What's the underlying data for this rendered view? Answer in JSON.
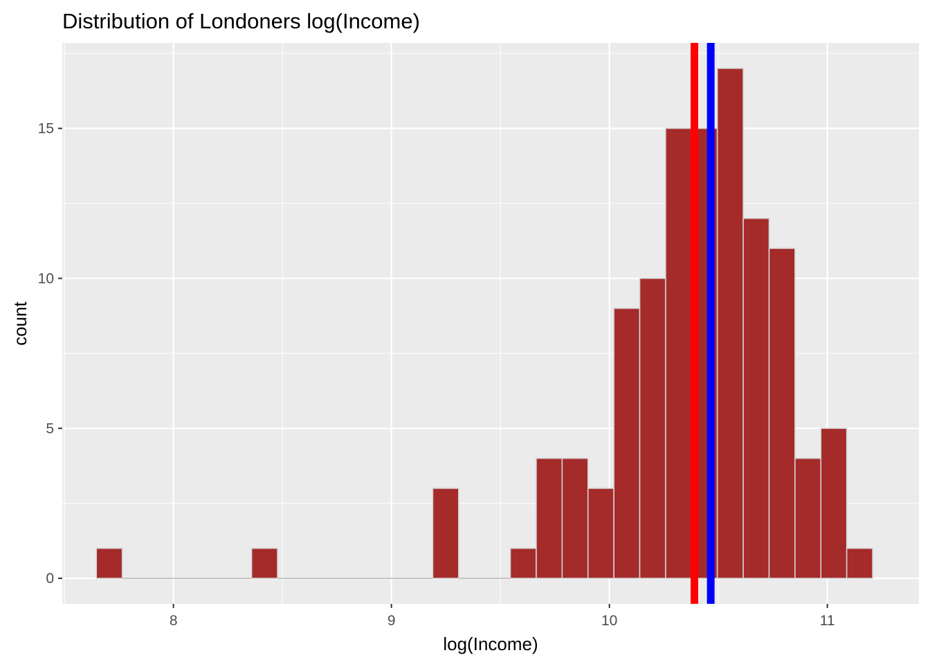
{
  "chart_data": {
    "type": "bar",
    "title": "Distribution of Londoners log(Income)",
    "xlabel": "log(Income)",
    "ylabel": "count",
    "xlim": [
      7.49,
      11.42
    ],
    "ylim": [
      -0.85,
      17.85
    ],
    "x_ticks": [
      8,
      9,
      10,
      11
    ],
    "y_ticks": [
      0,
      5,
      10,
      15
    ],
    "bin_width": 0.1187,
    "bin_start": 7.6465,
    "counts": [
      1,
      0,
      0,
      0,
      0,
      0,
      1,
      0,
      0,
      0,
      0,
      0,
      0,
      3,
      0,
      0,
      1,
      4,
      4,
      3,
      9,
      10,
      15,
      15,
      17,
      12,
      11,
      4,
      5,
      1
    ],
    "vlines": [
      {
        "x": 10.39,
        "color": "#ff0000"
      },
      {
        "x": 10.465,
        "color": "#0000ff"
      }
    ],
    "grid": true,
    "colors": {
      "bar_fill": "#a52a2a",
      "bar_outline": "#d3d3d3",
      "panel_bg": "#ebebeb",
      "grid_major": "#ffffff"
    }
  }
}
